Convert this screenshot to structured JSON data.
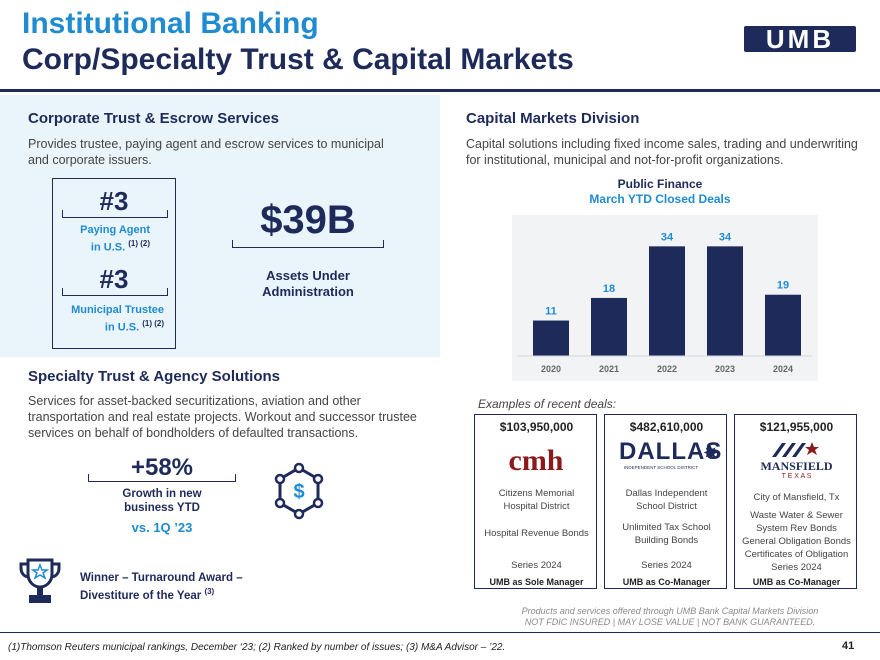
{
  "header": {
    "line1": "Institutional Banking",
    "line2": "Corp/Specialty Trust & Capital Markets",
    "logo": "UMB"
  },
  "corporate_trust": {
    "title": "Corporate Trust & Escrow Services",
    "text1": "Provides trustee, paying agent and escrow services to municipal",
    "text2": "and corporate issuers.",
    "rank1": {
      "num": "#3",
      "label_line1": "Paying Agent",
      "label_line2": "in U.S.",
      "note": "(1) (2)"
    },
    "rank2": {
      "num": "#3",
      "label_line1": "Municipal Trustee",
      "label_line2": "in U.S.",
      "note": "(1) (2)"
    },
    "aum": "$39B",
    "aum_label1": "Assets Under",
    "aum_label2": "Administration"
  },
  "capital_markets": {
    "title": "Capital Markets Division",
    "text1": "Capital solutions including fixed income sales, trading and underwriting",
    "text2": "for institutional, municipal and not-for-profit organizations."
  },
  "chart_data": {
    "type": "bar",
    "title_line1": "Public Finance",
    "title_line2": "March YTD Closed Deals",
    "categories": [
      "2020",
      "2021",
      "2022",
      "2023",
      "2024"
    ],
    "values": [
      11,
      18,
      34,
      34,
      19
    ],
    "ylim": [
      0,
      40
    ],
    "bar_color": "#1e2a5a",
    "label_color": "#1f8bd1",
    "grid": false
  },
  "examples": {
    "title": "Examples of recent deals:",
    "deals": [
      {
        "amount": "$103,950,000",
        "logo": "cmh",
        "issuer1": "Citizens Memorial",
        "issuer2": "Hospital District",
        "type1": "Hospital Revenue Bonds",
        "type2": "",
        "type3": "",
        "type4": "",
        "series": "Series 2024",
        "role": "UMB as Sole Manager"
      },
      {
        "amount": "$482,610,000",
        "logo": "DALLAS",
        "logo_sub": "INDEPENDENT SCHOOL DISTRICT",
        "issuer1": "Dallas Independent",
        "issuer2": "School District",
        "type1": "Unlimited Tax School",
        "type2": "Building Bonds",
        "type3": "",
        "type4": "",
        "series": "Series 2024",
        "role": "UMB as Co-Manager"
      },
      {
        "amount": "$121,955,000",
        "logo": "MANSFIELD",
        "logo_sub": "T E X A S",
        "issuer1": "City of Mansfield, Tx",
        "issuer2": "",
        "type1": "Waste Water & Sewer",
        "type2": "System Rev Bonds",
        "type3": "General Obligation Bonds",
        "type4": "Certificates of Obligation",
        "series": "Series 2024",
        "role": "UMB as Co-Manager"
      }
    ]
  },
  "specialty": {
    "title": "Specialty Trust & Agency Solutions",
    "text1": "Services for asset-backed securitizations, aviation and other",
    "text2": "transportation and real estate projects. Workout and successor trustee",
    "text3": "services on behalf of bondholders of defaulted transactions.",
    "pct": "+58%",
    "growth1": "Growth in new",
    "growth2": "business YTD",
    "vs": "vs. 1Q ’23",
    "award1": "Winner – Turnaround Award –",
    "award2": "Divestiture of the Year",
    "award_note": "(3)"
  },
  "disclaimer": {
    "line1": "Products and services offered through UMB Bank Capital Markets Division",
    "line2": "NOT FDIC INSURED | MAY LOSE VALUE  | NOT BANK GUARANTEED."
  },
  "footnote": "(1)Thomson Reuters municipal rankings, December ‘23; (2) Ranked by number of issues; (3) M&A Advisor – ’22.",
  "page_number": "41",
  "colors": {
    "navy": "#1e2a5a",
    "accent": "#1f8bd1",
    "panel": "#e9f4fb",
    "chart_bg": "#f2f3f5",
    "cmh_red": "#8b1a1a"
  },
  "icons": [
    "dollar-network-icon",
    "trophy-icon",
    "star-icon"
  ]
}
